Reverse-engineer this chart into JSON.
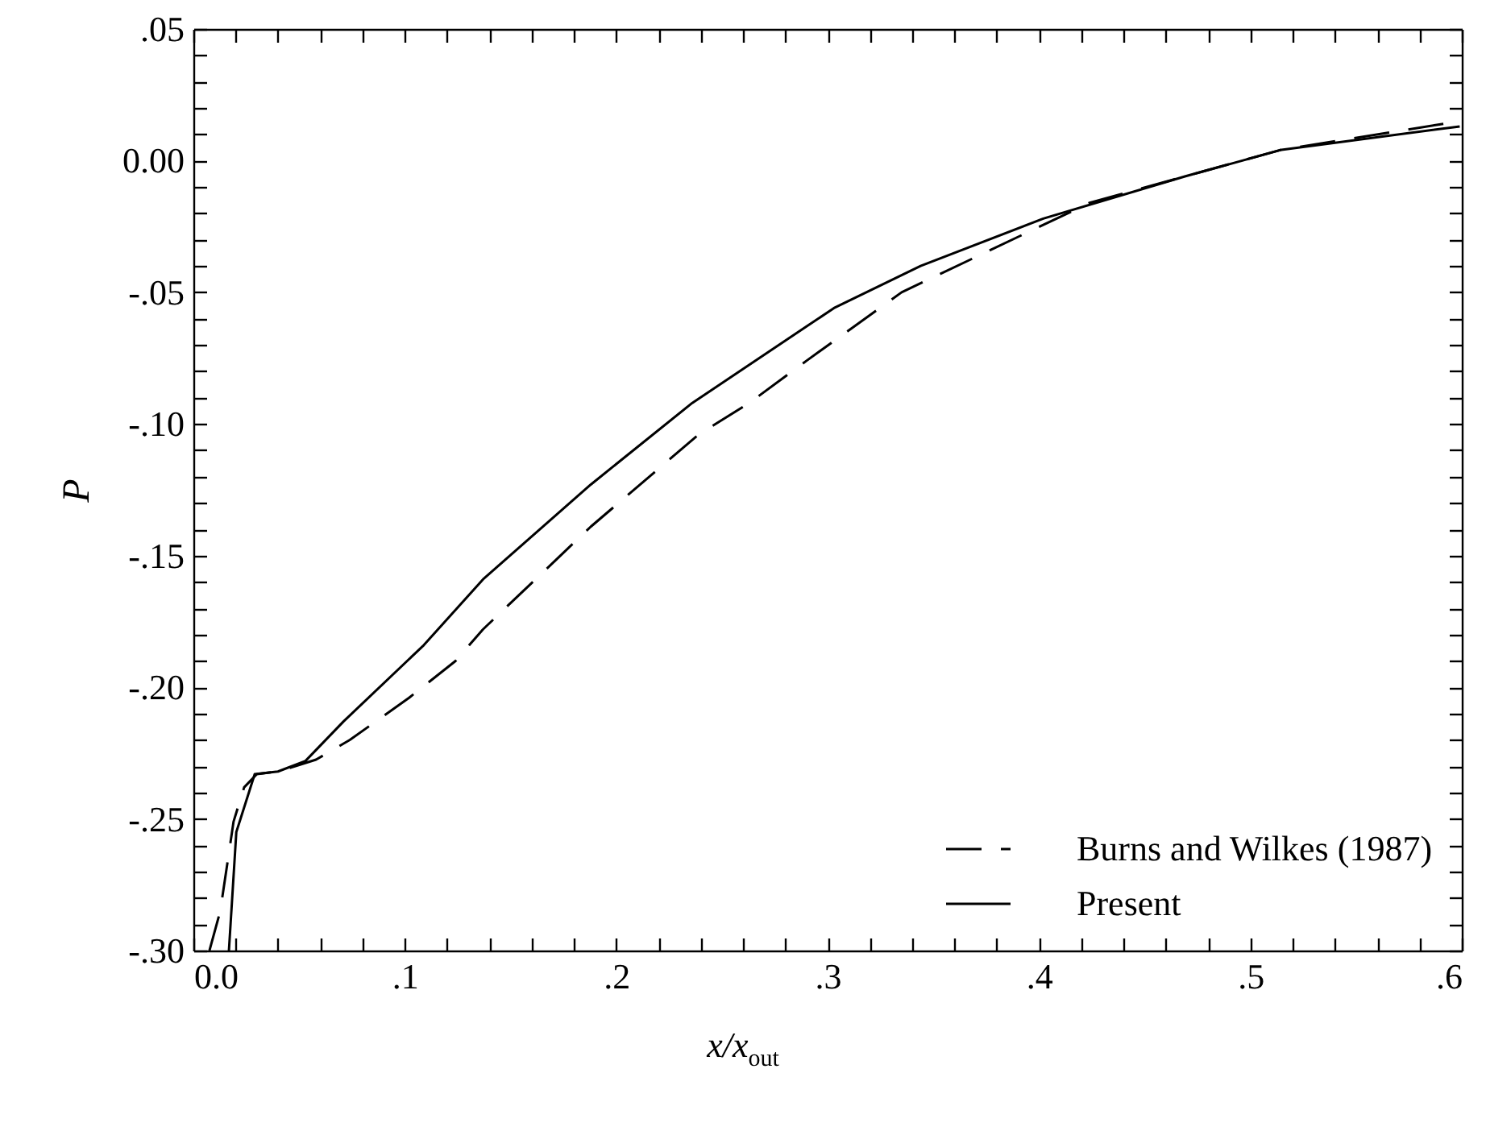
{
  "chart_data": {
    "type": "line",
    "xlabel": "x/x$_{out}$",
    "ylabel": "P",
    "legend": "bottom right",
    "marker": "none",
    "xlim": [
      0,
      0.6
    ],
    "ylim": [
      -0.3,
      0.05
    ],
    "xticks": [
      {
        "value": 0,
        "label": "0.0"
      },
      {
        "value": 0.02,
        "label": null
      },
      {
        "value": 0.04,
        "label": null
      },
      {
        "value": 0.06,
        "label": null
      },
      {
        "value": 0.08,
        "label": null
      },
      {
        "value": 0.1,
        "label": ".1"
      },
      {
        "value": 0.12,
        "label": null
      },
      {
        "value": 0.14,
        "label": null
      },
      {
        "value": 0.16,
        "label": null
      },
      {
        "value": 0.18,
        "label": null
      },
      {
        "value": 0.2,
        "label": ".2"
      },
      {
        "value": 0.22,
        "label": null
      },
      {
        "value": 0.24,
        "label": null
      },
      {
        "value": 0.26,
        "label": null
      },
      {
        "value": 0.28,
        "label": null
      },
      {
        "value": 0.3,
        "label": ".3"
      },
      {
        "value": 0.32,
        "label": null
      },
      {
        "value": 0.34,
        "label": null
      },
      {
        "value": 0.36,
        "label": null
      },
      {
        "value": 0.38,
        "label": null
      },
      {
        "value": 0.4,
        "label": ".4"
      },
      {
        "value": 0.42,
        "label": null
      },
      {
        "value": 0.44,
        "label": null
      },
      {
        "value": 0.46,
        "label": null
      },
      {
        "value": 0.48,
        "label": null
      },
      {
        "value": 0.5,
        "label": ".5"
      },
      {
        "value": 0.52,
        "label": null
      },
      {
        "value": 0.54,
        "label": null
      },
      {
        "value": 0.56,
        "label": null
      },
      {
        "value": 0.58,
        "label": null
      },
      {
        "value": 0.6,
        "label": ".6"
      }
    ],
    "yticks": [
      {
        "value": -0.3,
        "label": "-.30"
      },
      {
        "value": -0.29,
        "label": null
      },
      {
        "value": -0.28,
        "label": null
      },
      {
        "value": -0.27,
        "label": null
      },
      {
        "value": -0.26,
        "label": null
      },
      {
        "value": -0.25,
        "label": "-.25"
      },
      {
        "value": -0.24,
        "label": null
      },
      {
        "value": -0.23,
        "label": null
      },
      {
        "value": -0.22,
        "label": null
      },
      {
        "value": -0.21,
        "label": null
      },
      {
        "value": -0.2,
        "label": "-.20"
      },
      {
        "value": -0.19,
        "label": null
      },
      {
        "value": -0.18,
        "label": null
      },
      {
        "value": -0.17,
        "label": null
      },
      {
        "value": -0.16,
        "label": null
      },
      {
        "value": -0.15,
        "label": "-.15"
      },
      {
        "value": -0.14,
        "label": null
      },
      {
        "value": -0.13,
        "label": null
      },
      {
        "value": -0.12,
        "label": null
      },
      {
        "value": -0.11,
        "label": null
      },
      {
        "value": -0.1,
        "label": "-.10"
      },
      {
        "value": -0.09,
        "label": null
      },
      {
        "value": -0.08,
        "label": null
      },
      {
        "value": -0.07,
        "label": null
      },
      {
        "value": -0.06,
        "label": null
      },
      {
        "value": -0.05,
        "label": "-.05"
      },
      {
        "value": -0.04,
        "label": null
      },
      {
        "value": -0.03,
        "label": null
      },
      {
        "value": -0.02,
        "label": null
      },
      {
        "value": -0.01,
        "label": null
      },
      {
        "value": 0,
        "label": "0.00"
      },
      {
        "value": 0.01,
        "label": null
      },
      {
        "value": 0.02,
        "label": null
      },
      {
        "value": 0.03,
        "label": null
      },
      {
        "value": 0.04,
        "label": null
      },
      {
        "value": 0.05,
        "label": ".05"
      }
    ],
    "series": [
      {
        "name": "Burns and Wilkes (1987)",
        "color": "#000000",
        "line_style": "dashed",
        "x": [
          0.0076,
          0.0127,
          0.019,
          0.024,
          0.03,
          0.04,
          0.058,
          0.074,
          0.102,
          0.124,
          0.137,
          0.188,
          0.239,
          0.263,
          0.29,
          0.335,
          0.424,
          0.478,
          0.514,
          0.599
        ],
        "values": [
          -0.3,
          -0.285,
          -0.251,
          -0.238,
          -0.233,
          -0.232,
          -0.2275,
          -0.22,
          -0.204,
          -0.19,
          -0.178,
          -0.139,
          -0.104,
          -0.092,
          -0.076,
          -0.05,
          -0.016,
          -0.004,
          0.004,
          0.015
        ]
      },
      {
        "name": "Present",
        "color": "#000000",
        "line_style": "solid",
        "x": [
          0.0168,
          0.0203,
          0.029,
          0.04,
          0.053,
          0.071,
          0.109,
          0.137,
          0.188,
          0.236,
          0.29,
          0.303,
          0.344,
          0.402,
          0.469,
          0.514,
          0.599
        ],
        "values": [
          -0.3,
          -0.255,
          -0.233,
          -0.232,
          -0.228,
          -0.213,
          -0.184,
          -0.159,
          -0.123,
          -0.092,
          -0.063,
          -0.056,
          -0.04,
          -0.022,
          -0.006,
          0.004,
          0.013
        ]
      }
    ]
  }
}
